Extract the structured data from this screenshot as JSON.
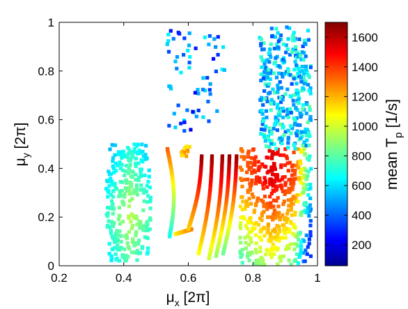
{
  "chart_data": {
    "type": "scatter",
    "title": "",
    "xlabel": {
      "base": "μ",
      "sub": "x",
      "unit": "[2π]"
    },
    "ylabel": {
      "base": "μ",
      "sub": "y",
      "unit": "[2π]"
    },
    "xlim": [
      0.2,
      1.0
    ],
    "ylim": [
      0.0,
      1.0
    ],
    "xticks": [
      "0.2",
      "0.4",
      "0.6",
      "0.8",
      "1"
    ],
    "yticks": [
      "0",
      "0.2",
      "0.4",
      "0.6",
      "0.8",
      "1"
    ],
    "grid": false,
    "colormap": "jet",
    "colorbar": {
      "label": {
        "base": "mean T",
        "sub": "p",
        "unit": "[1/s]"
      },
      "range": [
        60,
        1700
      ],
      "ticks": [
        "200",
        "400",
        "600",
        "800",
        "1000",
        "1200",
        "1400",
        "1600"
      ]
    },
    "clusters": [
      {
        "name": "left-block",
        "x_range": [
          0.34,
          0.48
        ],
        "y_range": [
          0.02,
          0.5
        ],
        "color_range": [
          400,
          1000
        ]
      },
      {
        "name": "v-curve-left",
        "x_range": [
          0.52,
          0.58
        ],
        "y_range": [
          0.12,
          0.5
        ],
        "color_range": [
          700,
          1400
        ]
      },
      {
        "name": "s-curves",
        "x_range": [
          0.62,
          0.72
        ],
        "y_range": [
          0.03,
          0.47
        ],
        "color_range": [
          900,
          1700
        ]
      },
      {
        "name": "upper-middle-sparse",
        "x_range": [
          0.52,
          0.72
        ],
        "y_range": [
          0.55,
          1.0
        ],
        "color_range": [
          200,
          700
        ]
      },
      {
        "name": "lower-right-block",
        "x_range": [
          0.76,
          0.98
        ],
        "y_range": [
          0.0,
          0.48
        ],
        "color_range": [
          400,
          1650
        ]
      },
      {
        "name": "upper-right-block",
        "x_range": [
          0.82,
          0.98
        ],
        "y_range": [
          0.48,
          0.98
        ],
        "color_range": [
          300,
          800
        ]
      }
    ]
  }
}
